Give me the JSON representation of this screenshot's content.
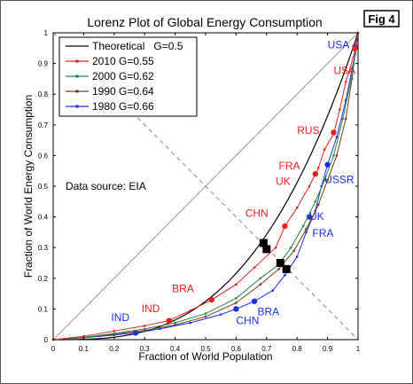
{
  "badge": "Fig 4",
  "chart_data": {
    "type": "line",
    "title": "Lorenz Plot of Global Energy Consumption",
    "xlabel": "Fraction of World Population",
    "ylabel": "Fraction of World Energy Consumption",
    "xlim": [
      0,
      1
    ],
    "ylim": [
      0,
      1
    ],
    "xticks": [
      "0",
      "0.1",
      "0.2",
      "0.3",
      "0.4",
      "0.5",
      "0.6",
      "0.7",
      "0.8",
      "0.9",
      "1"
    ],
    "yticks": [
      "0",
      "0.1",
      "0.2",
      "0.3",
      "0.4",
      "0.5",
      "0.6",
      "0.7",
      "0.8",
      "0.9",
      "1"
    ],
    "grid": false,
    "legend_position": "top-left",
    "legend": [
      {
        "label": "Theoretical",
        "gini": "G=0.5",
        "color": "#000000"
      },
      {
        "label": "2010",
        "gini": "G=0.55",
        "color": "#e8201c"
      },
      {
        "label": "2000",
        "gini": "G=0.62",
        "color": "#1f8a55"
      },
      {
        "label": "1990",
        "gini": "G=0.64",
        "color": "#7a3a10"
      },
      {
        "label": "1980",
        "gini": "G=0.66",
        "color": "#1a2ee8"
      }
    ],
    "note": "Data source: EIA",
    "theoretical_curve": {
      "color": "#000000",
      "exponent": 3
    },
    "series": [
      {
        "name": "2010",
        "gini": "G=0.55",
        "color": "#e8201c",
        "points": [
          [
            0.0,
            0.0
          ],
          [
            0.1,
            0.011
          ],
          [
            0.2,
            0.028
          ],
          [
            0.3,
            0.045
          ],
          [
            0.38,
            0.062
          ],
          [
            0.45,
            0.095
          ],
          [
            0.52,
            0.13
          ],
          [
            0.6,
            0.18
          ],
          [
            0.66,
            0.235
          ],
          [
            0.73,
            0.3
          ],
          [
            0.76,
            0.37
          ],
          [
            0.8,
            0.43
          ],
          [
            0.84,
            0.5
          ],
          [
            0.87,
            0.56
          ],
          [
            0.89,
            0.62
          ],
          [
            0.92,
            0.67
          ],
          [
            0.94,
            0.75
          ],
          [
            0.96,
            0.84
          ],
          [
            0.99,
            0.94
          ],
          [
            1.0,
            1.0
          ]
        ],
        "markers": [
          [
            0.38,
            0.062
          ],
          [
            0.52,
            0.13
          ],
          [
            0.76,
            0.37
          ],
          [
            0.86,
            0.54
          ],
          [
            0.92,
            0.675
          ],
          [
            0.99,
            0.95
          ]
        ]
      },
      {
        "name": "2000",
        "gini": "G=0.62",
        "color": "#1f8a55",
        "points": [
          [
            0.0,
            0.0
          ],
          [
            0.1,
            0.008
          ],
          [
            0.2,
            0.02
          ],
          [
            0.3,
            0.035
          ],
          [
            0.4,
            0.055
          ],
          [
            0.5,
            0.085
          ],
          [
            0.6,
            0.135
          ],
          [
            0.68,
            0.2
          ],
          [
            0.74,
            0.245
          ],
          [
            0.78,
            0.3
          ],
          [
            0.82,
            0.37
          ],
          [
            0.86,
            0.45
          ],
          [
            0.89,
            0.52
          ],
          [
            0.92,
            0.6
          ],
          [
            0.95,
            0.72
          ],
          [
            0.98,
            0.86
          ],
          [
            1.0,
            1.0
          ]
        ]
      },
      {
        "name": "1990",
        "gini": "G=0.64",
        "color": "#7a3a10",
        "points": [
          [
            0.0,
            0.0
          ],
          [
            0.1,
            0.007
          ],
          [
            0.2,
            0.018
          ],
          [
            0.3,
            0.03
          ],
          [
            0.4,
            0.048
          ],
          [
            0.5,
            0.075
          ],
          [
            0.6,
            0.12
          ],
          [
            0.68,
            0.18
          ],
          [
            0.74,
            0.23
          ],
          [
            0.79,
            0.29
          ],
          [
            0.83,
            0.36
          ],
          [
            0.87,
            0.44
          ],
          [
            0.9,
            0.52
          ],
          [
            0.93,
            0.6
          ],
          [
            0.96,
            0.72
          ],
          [
            0.98,
            0.85
          ],
          [
            1.0,
            1.0
          ]
        ]
      },
      {
        "name": "1980",
        "gini": "G=0.66",
        "color": "#1a2ee8",
        "points": [
          [
            0.0,
            0.0
          ],
          [
            0.1,
            0.006
          ],
          [
            0.2,
            0.015
          ],
          [
            0.27,
            0.022
          ],
          [
            0.35,
            0.035
          ],
          [
            0.45,
            0.055
          ],
          [
            0.55,
            0.082
          ],
          [
            0.6,
            0.1
          ],
          [
            0.66,
            0.125
          ],
          [
            0.72,
            0.16
          ],
          [
            0.76,
            0.21
          ],
          [
            0.8,
            0.27
          ],
          [
            0.83,
            0.35
          ],
          [
            0.86,
            0.42
          ],
          [
            0.88,
            0.5
          ],
          [
            0.9,
            0.57
          ],
          [
            0.93,
            0.66
          ],
          [
            0.96,
            0.78
          ],
          [
            0.99,
            0.93
          ],
          [
            1.0,
            1.0
          ]
        ],
        "markers": [
          [
            0.27,
            0.022
          ],
          [
            0.6,
            0.1
          ],
          [
            0.66,
            0.125
          ],
          [
            0.84,
            0.4
          ],
          [
            0.9,
            0.57
          ],
          [
            0.99,
            0.955
          ]
        ]
      }
    ],
    "square_markers": [
      [
        0.69,
        0.315
      ],
      [
        0.7,
        0.295
      ],
      [
        0.745,
        0.25
      ],
      [
        0.765,
        0.23
      ]
    ],
    "annotations": [
      {
        "text": "USA",
        "x": 0.9,
        "y": 0.95,
        "color": "#1a2ee8"
      },
      {
        "text": "USA",
        "x": 0.92,
        "y": 0.865,
        "color": "#e8201c"
      },
      {
        "text": "RUS",
        "x": 0.8,
        "y": 0.67,
        "color": "#e8201c"
      },
      {
        "text": "FRA",
        "x": 0.74,
        "y": 0.555,
        "color": "#e8201c"
      },
      {
        "text": "UK",
        "x": 0.73,
        "y": 0.505,
        "color": "#e8201c"
      },
      {
        "text": "USSR",
        "x": 0.89,
        "y": 0.51,
        "color": "#1a2ee8"
      },
      {
        "text": "CHN",
        "x": 0.63,
        "y": 0.4,
        "color": "#e8201c"
      },
      {
        "text": "UK",
        "x": 0.84,
        "y": 0.39,
        "color": "#1a2ee8"
      },
      {
        "text": "FRA",
        "x": 0.85,
        "y": 0.335,
        "color": "#1a2ee8"
      },
      {
        "text": "BRA",
        "x": 0.39,
        "y": 0.155,
        "color": "#e8201c"
      },
      {
        "text": "IND",
        "x": 0.29,
        "y": 0.09,
        "color": "#e8201c"
      },
      {
        "text": "IND",
        "x": 0.19,
        "y": 0.06,
        "color": "#1a2ee8"
      },
      {
        "text": "BRA",
        "x": 0.67,
        "y": 0.08,
        "color": "#1a2ee8"
      },
      {
        "text": "CHN",
        "x": 0.6,
        "y": 0.05,
        "color": "#1a2ee8"
      }
    ]
  }
}
